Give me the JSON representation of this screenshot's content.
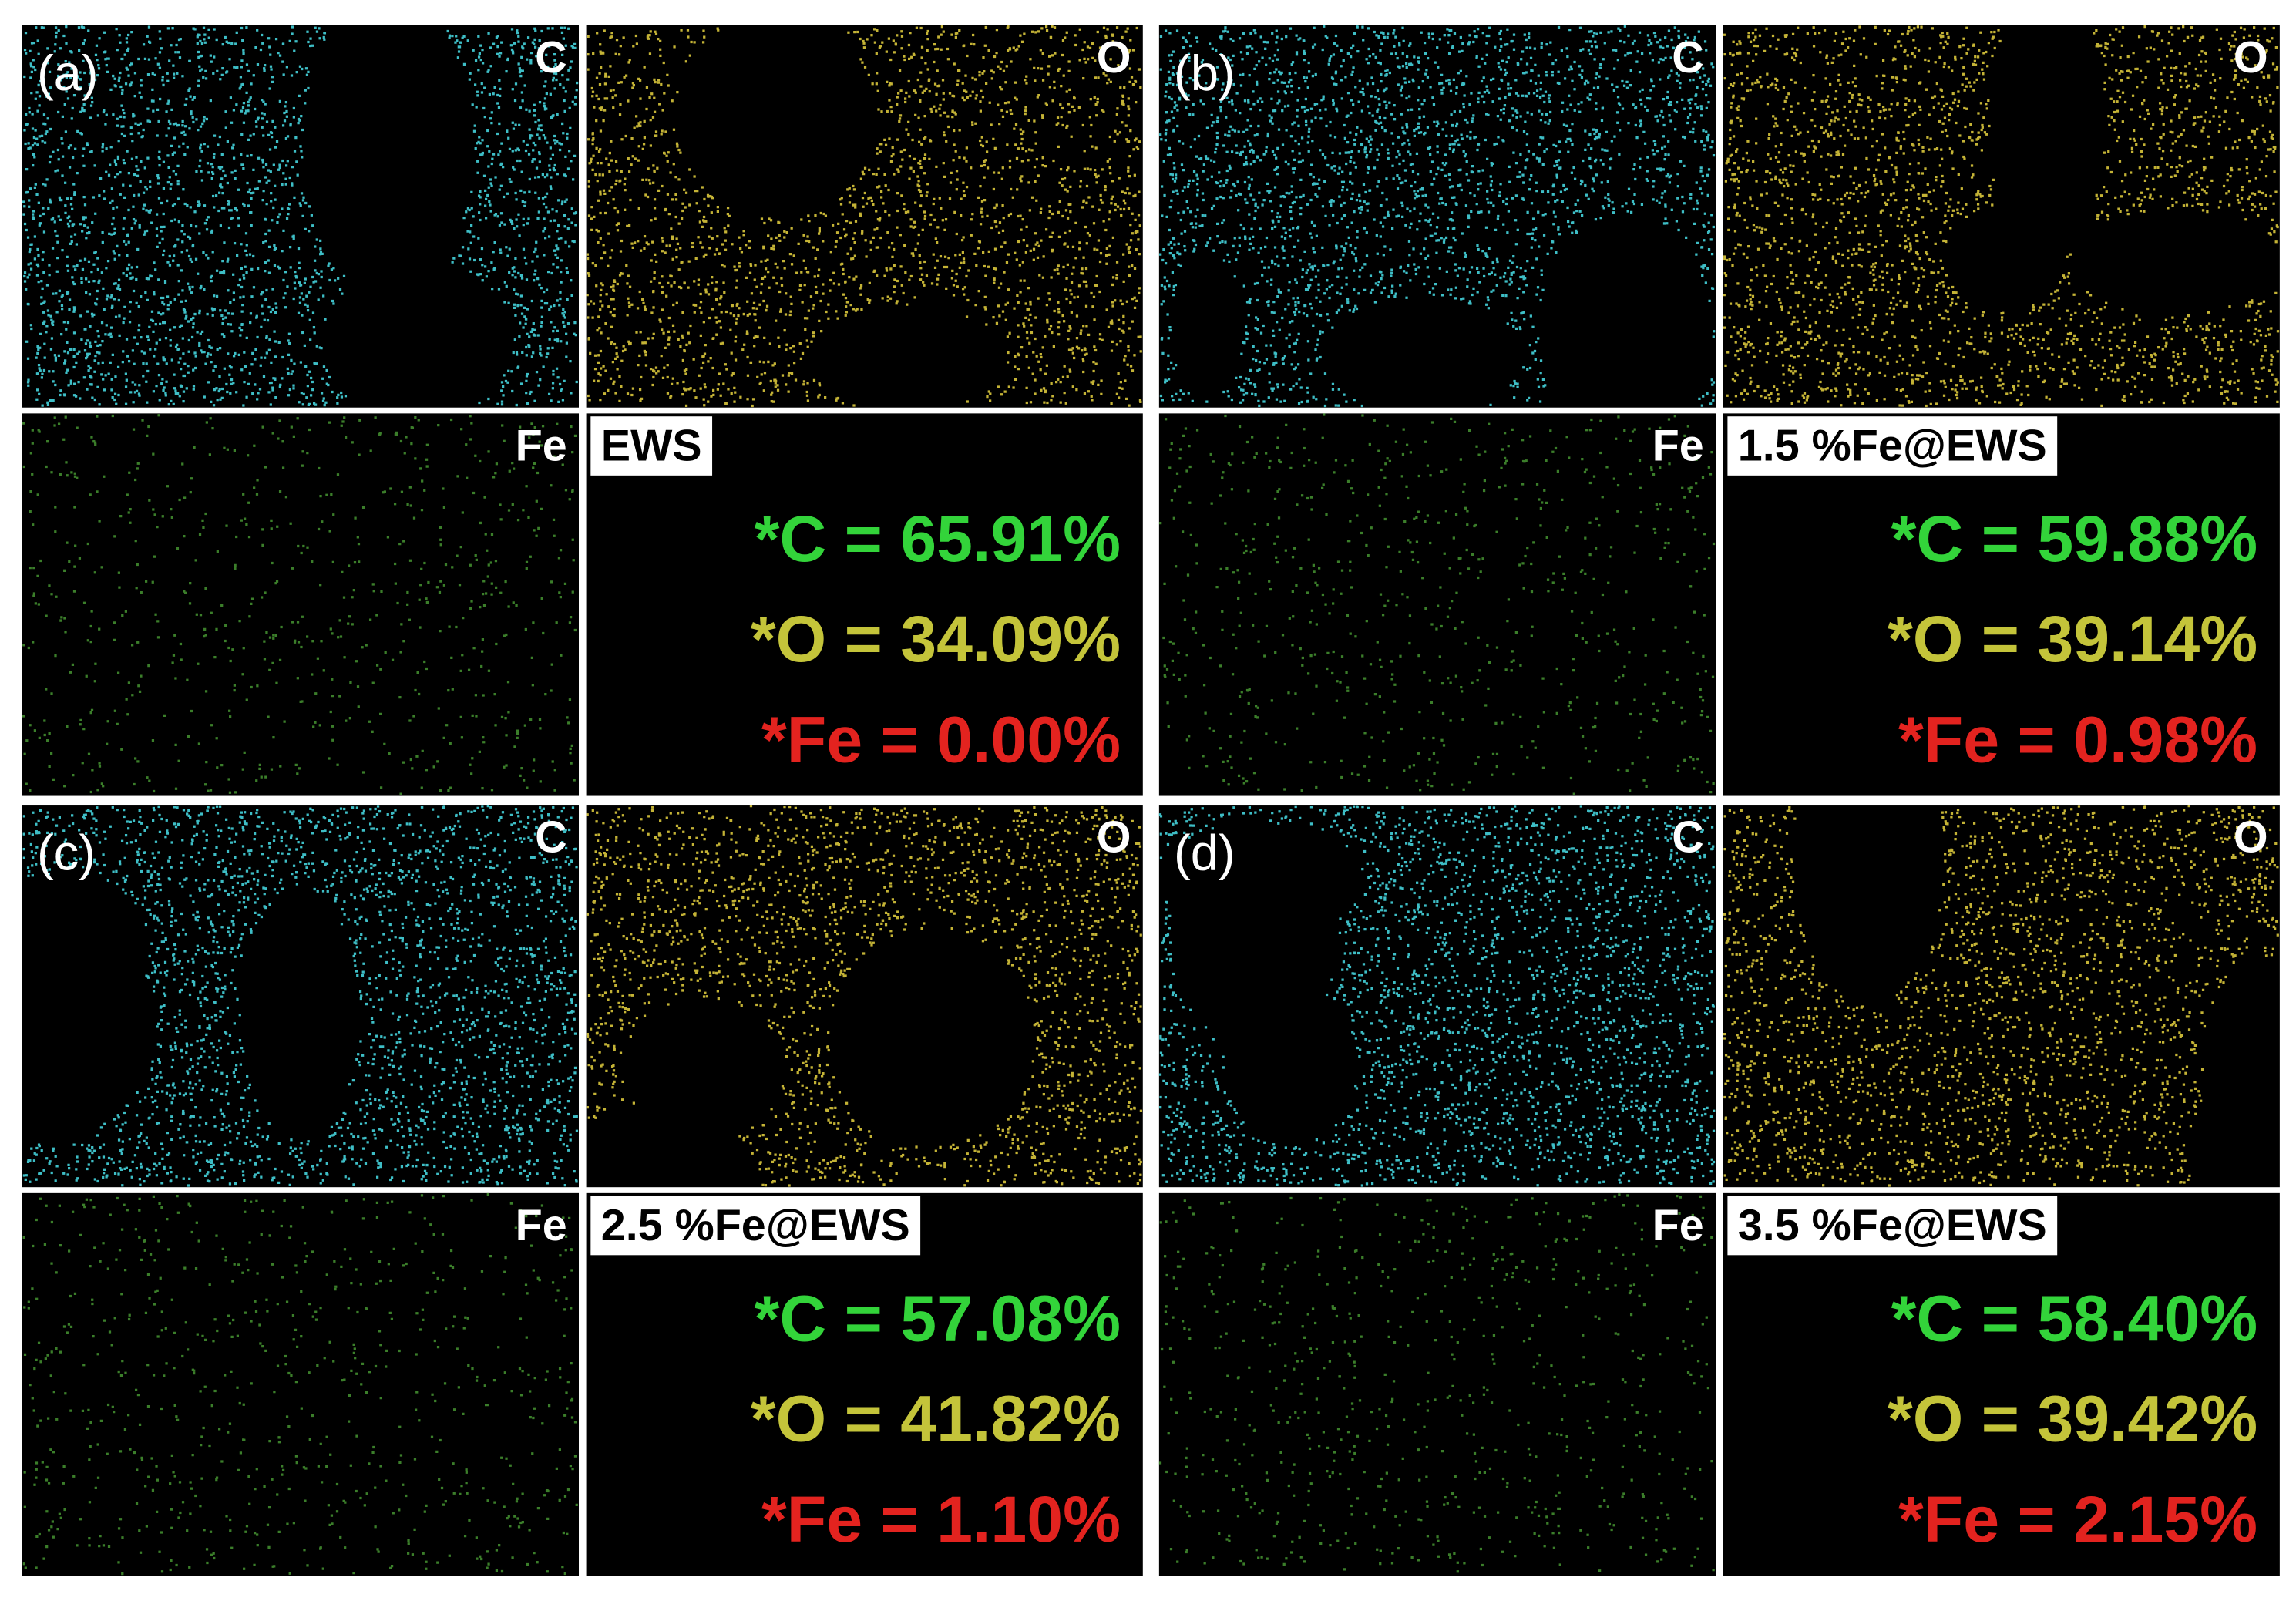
{
  "panels": [
    {
      "label": "(a)",
      "maps": [
        "C",
        "O",
        "Fe"
      ],
      "sample": "EWS",
      "composition": [
        "*C = 65.91%",
        "*O = 34.09%",
        "*Fe = 0.00%"
      ]
    },
    {
      "label": "(b)",
      "maps": [
        "C",
        "O",
        "Fe"
      ],
      "sample": "1.5 %Fe@EWS",
      "composition": [
        "*C = 59.88%",
        "*O = 39.14%",
        "*Fe = 0.98%"
      ]
    },
    {
      "label": "(c)",
      "maps": [
        "C",
        "O",
        "Fe"
      ],
      "sample": "2.5 %Fe@EWS",
      "composition": [
        "*C = 57.08%",
        "*O = 41.82%",
        "*Fe = 1.10%"
      ]
    },
    {
      "label": "(d)",
      "maps": [
        "C",
        "O",
        "Fe"
      ],
      "sample": "3.5 %Fe@EWS",
      "composition": [
        "*C = 58.40%",
        "*O = 39.42%",
        "*Fe = 2.15%"
      ]
    }
  ]
}
